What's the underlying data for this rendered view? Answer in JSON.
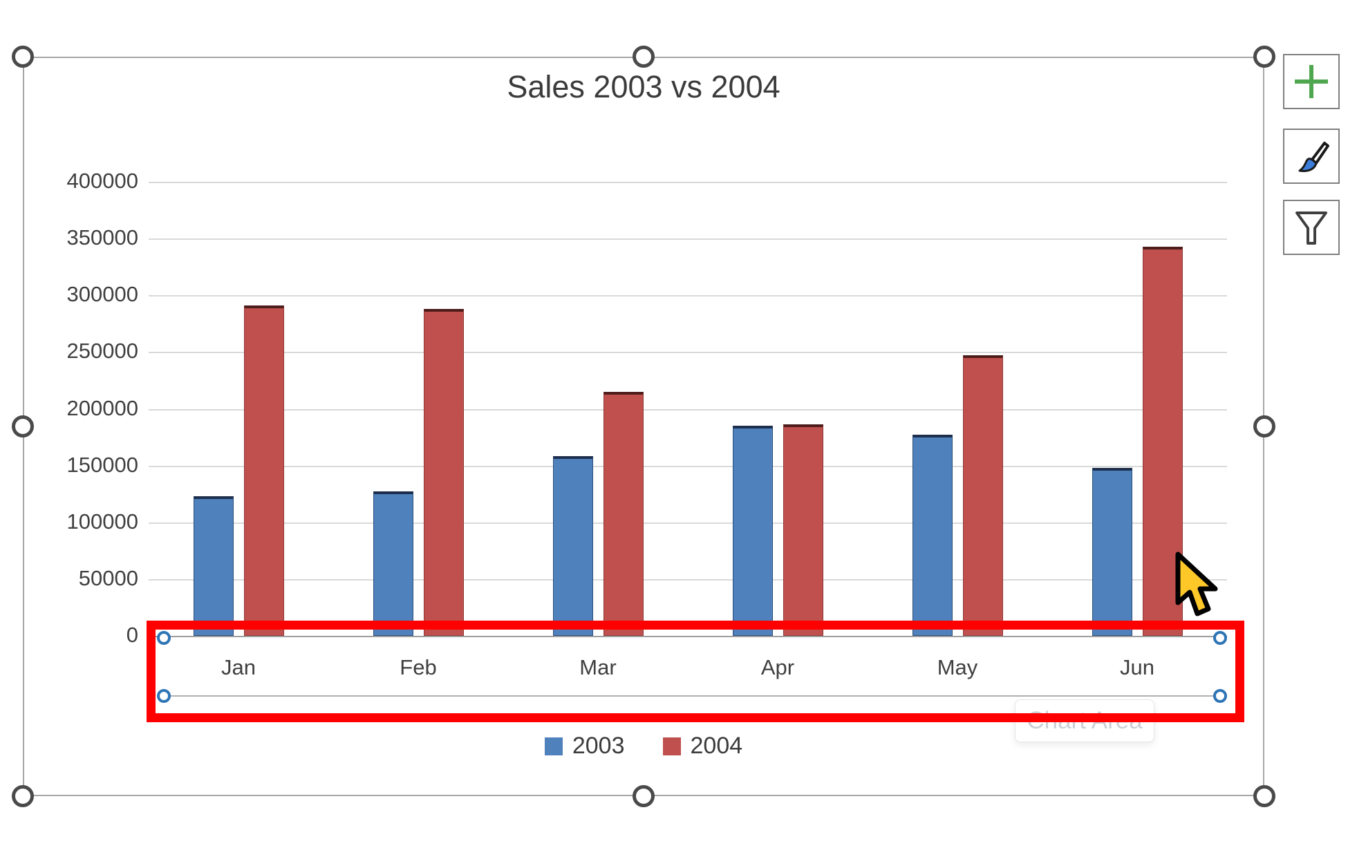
{
  "window": {
    "background": "#ffffff",
    "selection_handle_color": "#4a4a4a",
    "axis_handle_color": "#2e75b6"
  },
  "chart_data": {
    "type": "bar",
    "title": "Sales 2003 vs 2004",
    "categories": [
      "Jan",
      "Feb",
      "Mar",
      "Apr",
      "May",
      "Jun"
    ],
    "series": [
      {
        "name": "2003",
        "color": "#4f81bd",
        "values": [
          123000,
          127000,
          158000,
          185000,
          177000,
          148000
        ]
      },
      {
        "name": "2004",
        "color": "#c0504d",
        "values": [
          291000,
          288000,
          215000,
          186000,
          247000,
          343000
        ]
      }
    ],
    "xlabel": "",
    "ylabel": "",
    "ylim": [
      0,
      400000
    ],
    "ytick_interval": 50000,
    "yticks": [
      "400000",
      "350000",
      "300000",
      "250000",
      "200000",
      "150000",
      "100000",
      "50000",
      "0"
    ],
    "grid": true,
    "gridline_color": "#d9d9d9",
    "legend_position": "bottom"
  },
  "legend": {
    "items": [
      {
        "label": "2003",
        "color": "#4f81bd"
      },
      {
        "label": "2004",
        "color": "#c0504d"
      }
    ]
  },
  "toolbar": {
    "buttons": [
      {
        "id": "chart-elements",
        "icon": "plus-icon",
        "icon_color": "#4ea74e"
      },
      {
        "id": "chart-styles",
        "icon": "paintbrush-icon",
        "icon_color": "#3b7dd8"
      },
      {
        "id": "chart-filters",
        "icon": "funnel-icon",
        "icon_color": "#3f3f3f"
      }
    ]
  },
  "tooltip": {
    "label": "Chart Area"
  },
  "annotation": {
    "shape": "rectangle",
    "color": "#fe0000"
  }
}
